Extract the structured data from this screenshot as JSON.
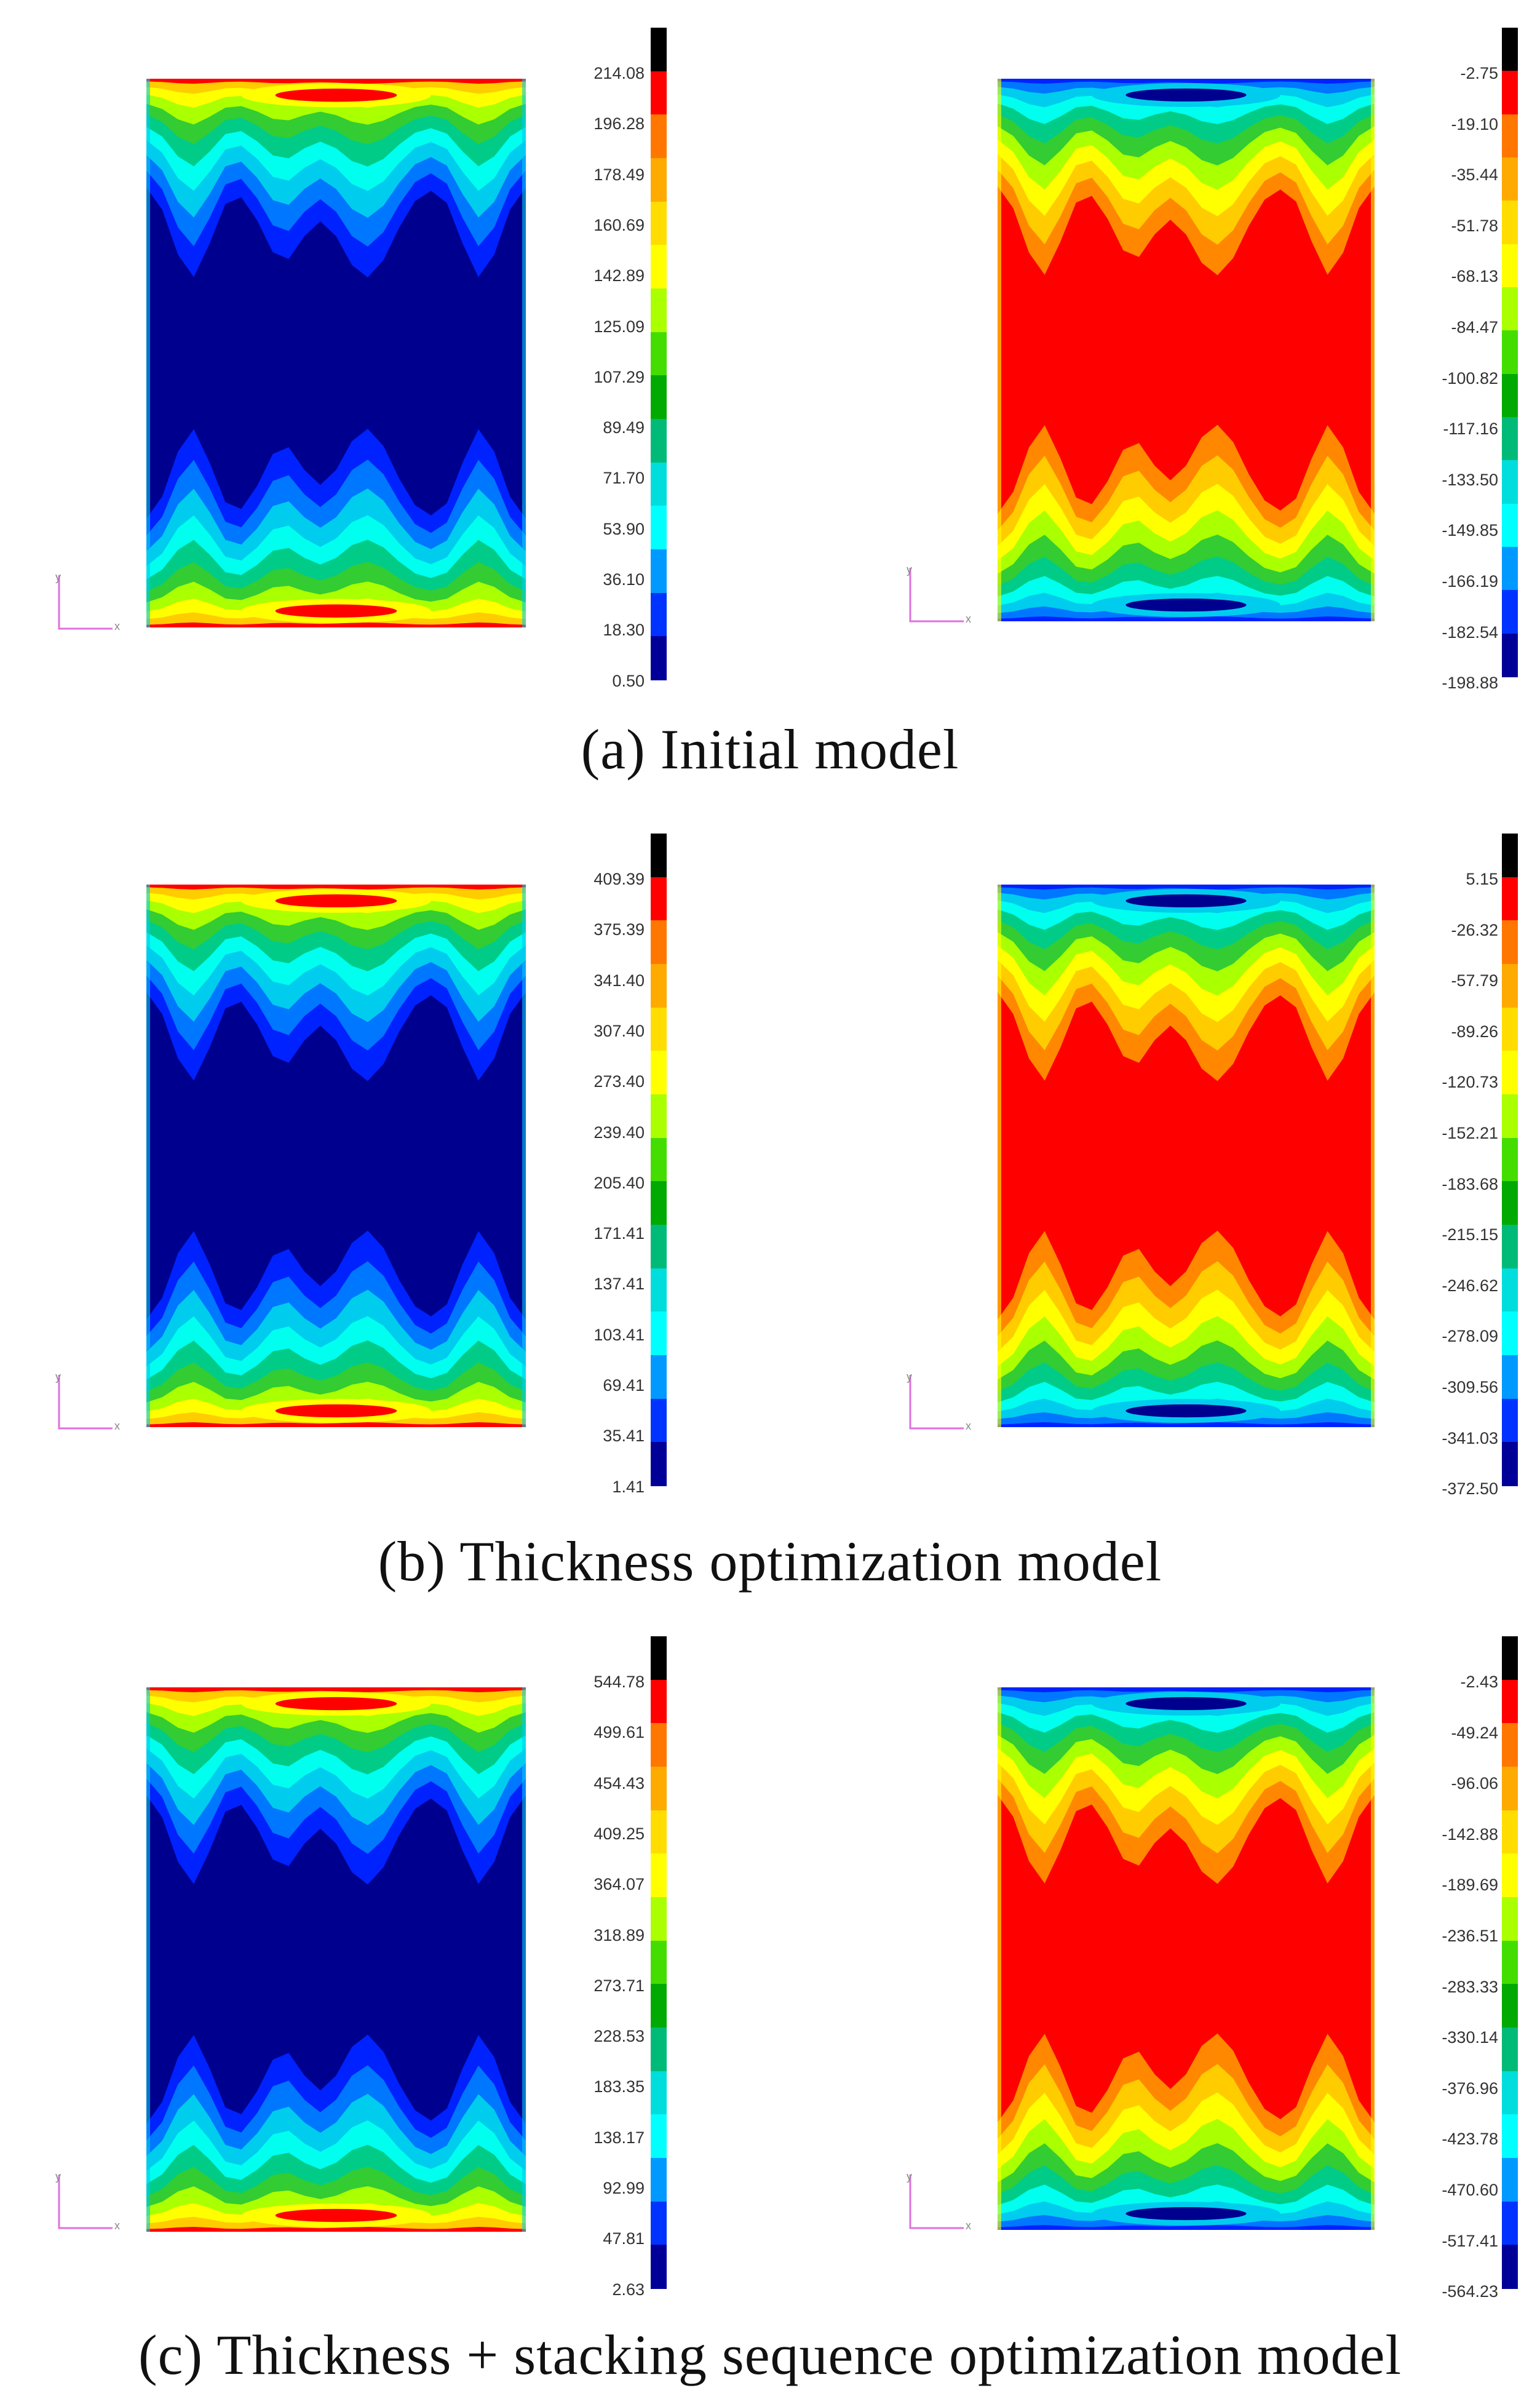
{
  "colorbar_colors": [
    "#000000",
    "#ff0000",
    "#ff7700",
    "#ffaa00",
    "#ffdd00",
    "#ffff00",
    "#aaff00",
    "#44dd00",
    "#00aa00",
    "#00bb77",
    "#00dddd",
    "#00ffff",
    "#0099ff",
    "#0033ff",
    "#000099"
  ],
  "contour_colors": {
    "low": "#00008f",
    "l2": "#0022ff",
    "l3": "#0077ff",
    "l4": "#00ccee",
    "l5": "#00ffee",
    "l6": "#00cc88",
    "l7": "#33cc33",
    "l8": "#aaff00",
    "l9": "#ffff00",
    "l10": "#ffcc00",
    "l11": "#ff8800",
    "high": "#ff0000"
  },
  "axis_labels": {
    "y": "y",
    "x": "x"
  },
  "rows": [
    {
      "caption": "(a) Initial model",
      "left": {
        "scale": [
          "214.08",
          "196.28",
          "178.49",
          "160.69",
          "142.89",
          "125.09",
          "107.29",
          "89.49",
          "71.70",
          "53.90",
          "36.10",
          "18.30",
          "0.50"
        ]
      },
      "right": {
        "scale": [
          "-2.75",
          "-19.10",
          "-35.44",
          "-51.78",
          "-68.13",
          "-84.47",
          "-100.82",
          "-117.16",
          "-133.50",
          "-149.85",
          "-166.19",
          "-182.54",
          "-198.88"
        ]
      }
    },
    {
      "caption": "(b) Thickness optimization model",
      "left": {
        "scale": [
          "409.39",
          "375.39",
          "341.40",
          "307.40",
          "273.40",
          "239.40",
          "205.40",
          "171.41",
          "137.41",
          "103.41",
          "69.41",
          "35.41",
          "1.41"
        ]
      },
      "right": {
        "scale": [
          "5.15",
          "-26.32",
          "-57.79",
          "-89.26",
          "-120.73",
          "-152.21",
          "-183.68",
          "-215.15",
          "-246.62",
          "-278.09",
          "-309.56",
          "-341.03",
          "-372.50"
        ]
      }
    },
    {
      "caption": "(c) Thickness + stacking sequence  optimization model",
      "left": {
        "scale": [
          "544.78",
          "499.61",
          "454.43",
          "409.25",
          "364.07",
          "318.89",
          "273.71",
          "228.53",
          "183.35",
          "138.17",
          "92.99",
          "47.81",
          "2.63"
        ]
      },
      "right": {
        "scale": [
          "-2.43",
          "-49.24",
          "-96.06",
          "-142.88",
          "-189.69",
          "-236.51",
          "-283.33",
          "-330.14",
          "-376.96",
          "-423.78",
          "-470.60",
          "-517.41",
          "-564.23"
        ]
      }
    }
  ]
}
